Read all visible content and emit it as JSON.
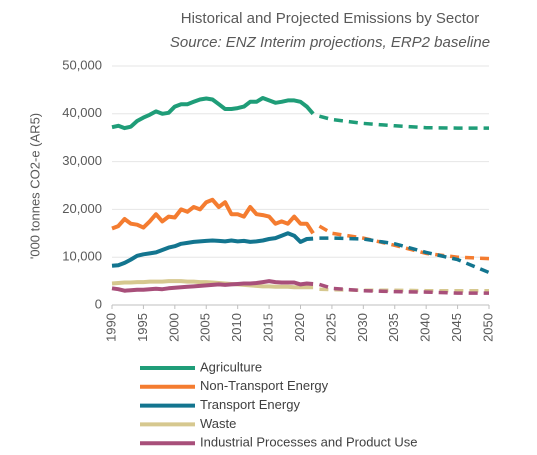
{
  "chart_data": {
    "type": "line",
    "title": "Historical and Projected Emissions by Sector",
    "subtitle": "Source: ENZ Interim projections, ERP2 baseline",
    "y_label": "'000 tonnes CO2-e (AR5)",
    "x": [
      1990,
      1991,
      1992,
      1993,
      1994,
      1995,
      1996,
      1997,
      1998,
      1999,
      2000,
      2001,
      2002,
      2003,
      2004,
      2005,
      2006,
      2007,
      2008,
      2009,
      2010,
      2011,
      2012,
      2013,
      2014,
      2015,
      2016,
      2017,
      2018,
      2019,
      2020,
      2021,
      2022
    ],
    "projection_x": [
      2023,
      2025,
      2030,
      2035,
      2040,
      2045,
      2050
    ],
    "series": [
      {
        "name": "Agriculture",
        "color": "#1f9d78",
        "values": [
          37200,
          37500,
          37000,
          37300,
          38500,
          39200,
          39800,
          40500,
          40000,
          40200,
          41500,
          42000,
          42000,
          42500,
          43000,
          43200,
          43000,
          42000,
          41000,
          41000,
          41200,
          41500,
          42500,
          42500,
          43300,
          42800,
          42300,
          42500,
          42800,
          42800,
          42500,
          41500,
          40000
        ],
        "projection": [
          39500,
          38800,
          38000,
          37500,
          37100,
          37000,
          37000
        ]
      },
      {
        "name": "Non-Transport Energy",
        "color": "#f47c30",
        "values": [
          16000,
          16500,
          18000,
          17000,
          16800,
          16200,
          17500,
          19000,
          17500,
          18500,
          18300,
          20000,
          19500,
          20500,
          20000,
          21500,
          22000,
          20500,
          21500,
          19000,
          19000,
          18500,
          20500,
          19000,
          18800,
          18500,
          17000,
          17500,
          17000,
          18500,
          17000,
          17000,
          15000
        ],
        "projection": [
          16500,
          15000,
          14000,
          12500,
          10800,
          10000,
          9700
        ]
      },
      {
        "name": "Transport Energy",
        "color": "#13758f",
        "values": [
          8200,
          8300,
          8800,
          9500,
          10300,
          10600,
          10800,
          11000,
          11500,
          12000,
          12300,
          12800,
          13000,
          13200,
          13300,
          13400,
          13500,
          13400,
          13300,
          13500,
          13300,
          13400,
          13200,
          13300,
          13500,
          13800,
          14000,
          14500,
          15000,
          14500,
          13200,
          13800,
          13900
        ],
        "projection": [
          14000,
          14000,
          13800,
          12800,
          11000,
          9500,
          6800
        ]
      },
      {
        "name": "Waste",
        "color": "#d6c88f",
        "values": [
          4500,
          4600,
          4700,
          4700,
          4800,
          4800,
          4900,
          4900,
          4900,
          5000,
          5000,
          5000,
          4900,
          4900,
          4800,
          4800,
          4700,
          4600,
          4500,
          4400,
          4300,
          4200,
          4100,
          4000,
          3900,
          3900,
          3800,
          3800,
          3800,
          3700,
          3700,
          3700,
          3700
        ],
        "projection": [
          3300,
          3200,
          3100,
          3100,
          3000,
          3000,
          3000
        ]
      },
      {
        "name": "Industrial Processes and Product Use",
        "color": "#a84f7a",
        "values": [
          3500,
          3300,
          3000,
          3100,
          3200,
          3200,
          3300,
          3400,
          3300,
          3500,
          3600,
          3700,
          3800,
          3900,
          4000,
          4100,
          4200,
          4300,
          4200,
          4300,
          4400,
          4500,
          4500,
          4600,
          4800,
          5000,
          4800,
          4700,
          4700,
          4700,
          4300,
          4500,
          4400
        ],
        "projection": [
          4300,
          3500,
          3000,
          2800,
          2700,
          2500,
          2500
        ]
      }
    ],
    "xlim": [
      1990,
      2050
    ],
    "xticks": [
      1990,
      1995,
      2000,
      2005,
      2010,
      2015,
      2020,
      2025,
      2030,
      2035,
      2040,
      2045,
      2050
    ],
    "ylim": [
      0,
      50000
    ],
    "yticks": [
      0,
      {
        "value": 10000,
        "label": "10,000"
      },
      {
        "value": 20000,
        "label": "20,000"
      },
      {
        "value": 30000,
        "label": "30,000"
      },
      {
        "value": 40000,
        "label": "40,000"
      },
      {
        "value": 50000,
        "label": "50,000"
      }
    ],
    "grid": true,
    "legend": "bottom"
  }
}
